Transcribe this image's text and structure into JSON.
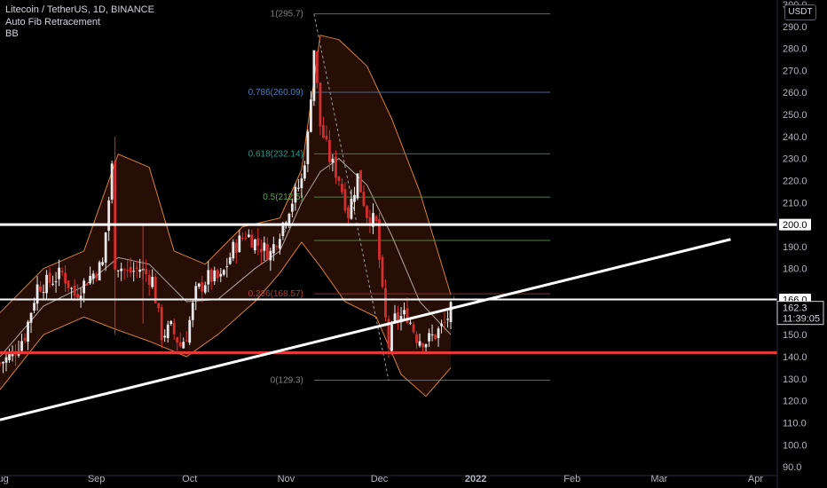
{
  "header": {
    "title": "Litecoin / TetherUS, 1D, BINANCE",
    "indicator_fib": "Auto Fib Retracement",
    "indicator_bb": "BB"
  },
  "currency_button": "USDT",
  "colors": {
    "background": "#000000",
    "candle_up": "#e8e8e8",
    "candle_down": "#d32f2f",
    "bb_band": "#d4813a",
    "bb_fill": "#2a0f07",
    "bb_basis": "#e0d8d0",
    "support_line": "#e53935",
    "resistance_line": "#ffffff",
    "trendline": "#ffffff",
    "fib_red": "#b23a3a",
    "fib_blue": "#4f7fb8",
    "fib_teal": "#2e9a8a",
    "fib_green": "#5e9f4f",
    "fib_gray": "#808080"
  },
  "price_tags": {
    "level_200": "200.0",
    "level_166": "166.0",
    "last_price": "162.3",
    "countdown": "11:39:05"
  },
  "chart_data": {
    "type": "candlestick",
    "title": "Litecoin / TetherUS, 1D, BINANCE",
    "y_range": [
      86,
      302
    ],
    "y_ticks": [
      "90.0",
      "100.0",
      "110.0",
      "120.0",
      "130.0",
      "140.0",
      "150.0",
      "160.0",
      "180.0",
      "190.0",
      "210.0",
      "220.0",
      "230.0",
      "240.0",
      "250.0",
      "260.0",
      "270.0",
      "280.0",
      "290.0",
      "300.0"
    ],
    "y_tick_values": [
      90,
      100,
      110,
      120,
      130,
      140,
      150,
      160,
      180,
      190,
      210,
      220,
      230,
      240,
      250,
      260,
      270,
      280,
      290,
      300
    ],
    "x_range_days": [
      "2021-08-01",
      "2022-04-08"
    ],
    "x_ticks": [
      {
        "label": "Aug",
        "date": "2021-08-01"
      },
      {
        "label": "Sep",
        "date": "2021-09-01"
      },
      {
        "label": "Oct",
        "date": "2021-10-01"
      },
      {
        "label": "Nov",
        "date": "2021-11-01"
      },
      {
        "label": "Dec",
        "date": "2021-12-01"
      },
      {
        "label": "2022",
        "date": "2022-01-01"
      },
      {
        "label": "Feb",
        "date": "2022-02-01"
      },
      {
        "label": "Mar",
        "date": "2022-03-01"
      },
      {
        "label": "Apr",
        "date": "2022-04-01"
      }
    ],
    "close_path": [
      [
        "2021-08-01",
        137
      ],
      [
        "2021-08-05",
        141
      ],
      [
        "2021-08-09",
        150
      ],
      [
        "2021-08-13",
        172
      ],
      [
        "2021-08-17",
        174
      ],
      [
        "2021-08-21",
        178
      ],
      [
        "2021-08-25",
        168
      ],
      [
        "2021-08-29",
        175
      ],
      [
        "2021-09-03",
        182
      ],
      [
        "2021-09-06",
        226
      ],
      [
        "2021-09-07",
        183
      ],
      [
        "2021-09-11",
        178
      ],
      [
        "2021-09-15",
        180
      ],
      [
        "2021-09-19",
        175
      ],
      [
        "2021-09-22",
        150
      ],
      [
        "2021-09-25",
        153
      ],
      [
        "2021-09-28",
        145
      ],
      [
        "2021-09-30",
        150
      ],
      [
        "2021-10-03",
        169
      ],
      [
        "2021-10-07",
        176
      ],
      [
        "2021-10-11",
        175
      ],
      [
        "2021-10-15",
        189
      ],
      [
        "2021-10-19",
        196
      ],
      [
        "2021-10-23",
        191
      ],
      [
        "2021-10-27",
        187
      ],
      [
        "2021-10-30",
        197
      ],
      [
        "2021-11-02",
        208
      ],
      [
        "2021-11-06",
        220
      ],
      [
        "2021-11-08",
        240
      ],
      [
        "2021-11-10",
        280
      ],
      [
        "2021-11-12",
        245
      ],
      [
        "2021-11-15",
        230
      ],
      [
        "2021-11-18",
        221
      ],
      [
        "2021-11-21",
        205
      ],
      [
        "2021-11-24",
        222
      ],
      [
        "2021-11-27",
        205
      ],
      [
        "2021-11-30",
        200
      ],
      [
        "2021-12-02",
        168
      ],
      [
        "2021-12-04",
        145
      ],
      [
        "2021-12-06",
        157
      ],
      [
        "2021-12-10",
        159
      ],
      [
        "2021-12-13",
        149
      ],
      [
        "2021-12-16",
        147
      ],
      [
        "2021-12-19",
        150
      ],
      [
        "2021-12-22",
        155
      ],
      [
        "2021-12-24",
        161
      ],
      [
        "2021-12-25",
        162.3
      ]
    ],
    "bb_upper": [
      [
        "2021-08-01",
        160
      ],
      [
        "2021-08-15",
        180
      ],
      [
        "2021-08-28",
        188
      ],
      [
        "2021-09-08",
        232
      ],
      [
        "2021-09-18",
        226
      ],
      [
        "2021-09-26",
        188
      ],
      [
        "2021-10-06",
        182
      ],
      [
        "2021-10-18",
        199
      ],
      [
        "2021-10-30",
        203
      ],
      [
        "2021-11-06",
        225
      ],
      [
        "2021-11-12",
        286
      ],
      [
        "2021-11-18",
        284
      ],
      [
        "2021-11-27",
        272
      ],
      [
        "2021-12-05",
        248
      ],
      [
        "2021-12-14",
        215
      ],
      [
        "2021-12-24",
        168
      ]
    ],
    "bb_lower": [
      [
        "2021-08-01",
        125
      ],
      [
        "2021-08-15",
        150
      ],
      [
        "2021-08-28",
        158
      ],
      [
        "2021-09-08",
        152
      ],
      [
        "2021-09-18",
        147
      ],
      [
        "2021-09-30",
        140
      ],
      [
        "2021-10-10",
        150
      ],
      [
        "2021-10-22",
        165
      ],
      [
        "2021-10-30",
        178
      ],
      [
        "2021-11-06",
        192
      ],
      [
        "2021-11-12",
        181
      ],
      [
        "2021-11-20",
        165
      ],
      [
        "2021-11-30",
        158
      ],
      [
        "2021-12-08",
        132
      ],
      [
        "2021-12-16",
        122
      ],
      [
        "2021-12-24",
        135
      ]
    ],
    "bb_basis": [
      [
        "2021-08-01",
        140
      ],
      [
        "2021-08-15",
        163
      ],
      [
        "2021-08-28",
        172
      ],
      [
        "2021-09-08",
        185
      ],
      [
        "2021-09-18",
        182
      ],
      [
        "2021-09-30",
        165
      ],
      [
        "2021-10-10",
        166
      ],
      [
        "2021-10-22",
        180
      ],
      [
        "2021-10-30",
        188
      ],
      [
        "2021-11-06",
        210
      ],
      [
        "2021-11-12",
        224
      ],
      [
        "2021-11-18",
        230
      ],
      [
        "2021-11-27",
        218
      ],
      [
        "2021-12-05",
        195
      ],
      [
        "2021-12-14",
        165
      ],
      [
        "2021-12-24",
        150
      ]
    ],
    "fib_retracement": {
      "start_date": "2021-11-10",
      "end_date": "2022-01-25",
      "levels": [
        {
          "label": "1(295.7)",
          "value": 295.7,
          "color": "#808080"
        },
        {
          "label": "0.786(260.09)",
          "value": 260.09,
          "color": "#4f7fb8"
        },
        {
          "label": "0.618(232.14)",
          "value": 232.14,
          "color": "#2e9a8a"
        },
        {
          "label": "0.5(212.5)",
          "value": 212.5,
          "color": "#5e9f4f"
        },
        {
          "label": "",
          "value": 192.8,
          "color": "#5e9f4f"
        },
        {
          "label": "0.236(168.57)",
          "value": 168.57,
          "color": "#b23a3a"
        },
        {
          "label": "0(129.3)",
          "value": 129.3,
          "color": "#808080"
        }
      ],
      "partial_label": "8"
    },
    "horizontal_levels": [
      {
        "value": 200,
        "color": "#ffffff",
        "label": "200.0"
      },
      {
        "value": 166,
        "color": "#ffffff",
        "label": "166.0"
      },
      {
        "value": 141.8,
        "color": "#e53935",
        "label": ""
      }
    ],
    "trendline": {
      "start": [
        "2021-08-01",
        111.3
      ],
      "end": [
        "2022-03-24",
        193.3
      ]
    }
  }
}
